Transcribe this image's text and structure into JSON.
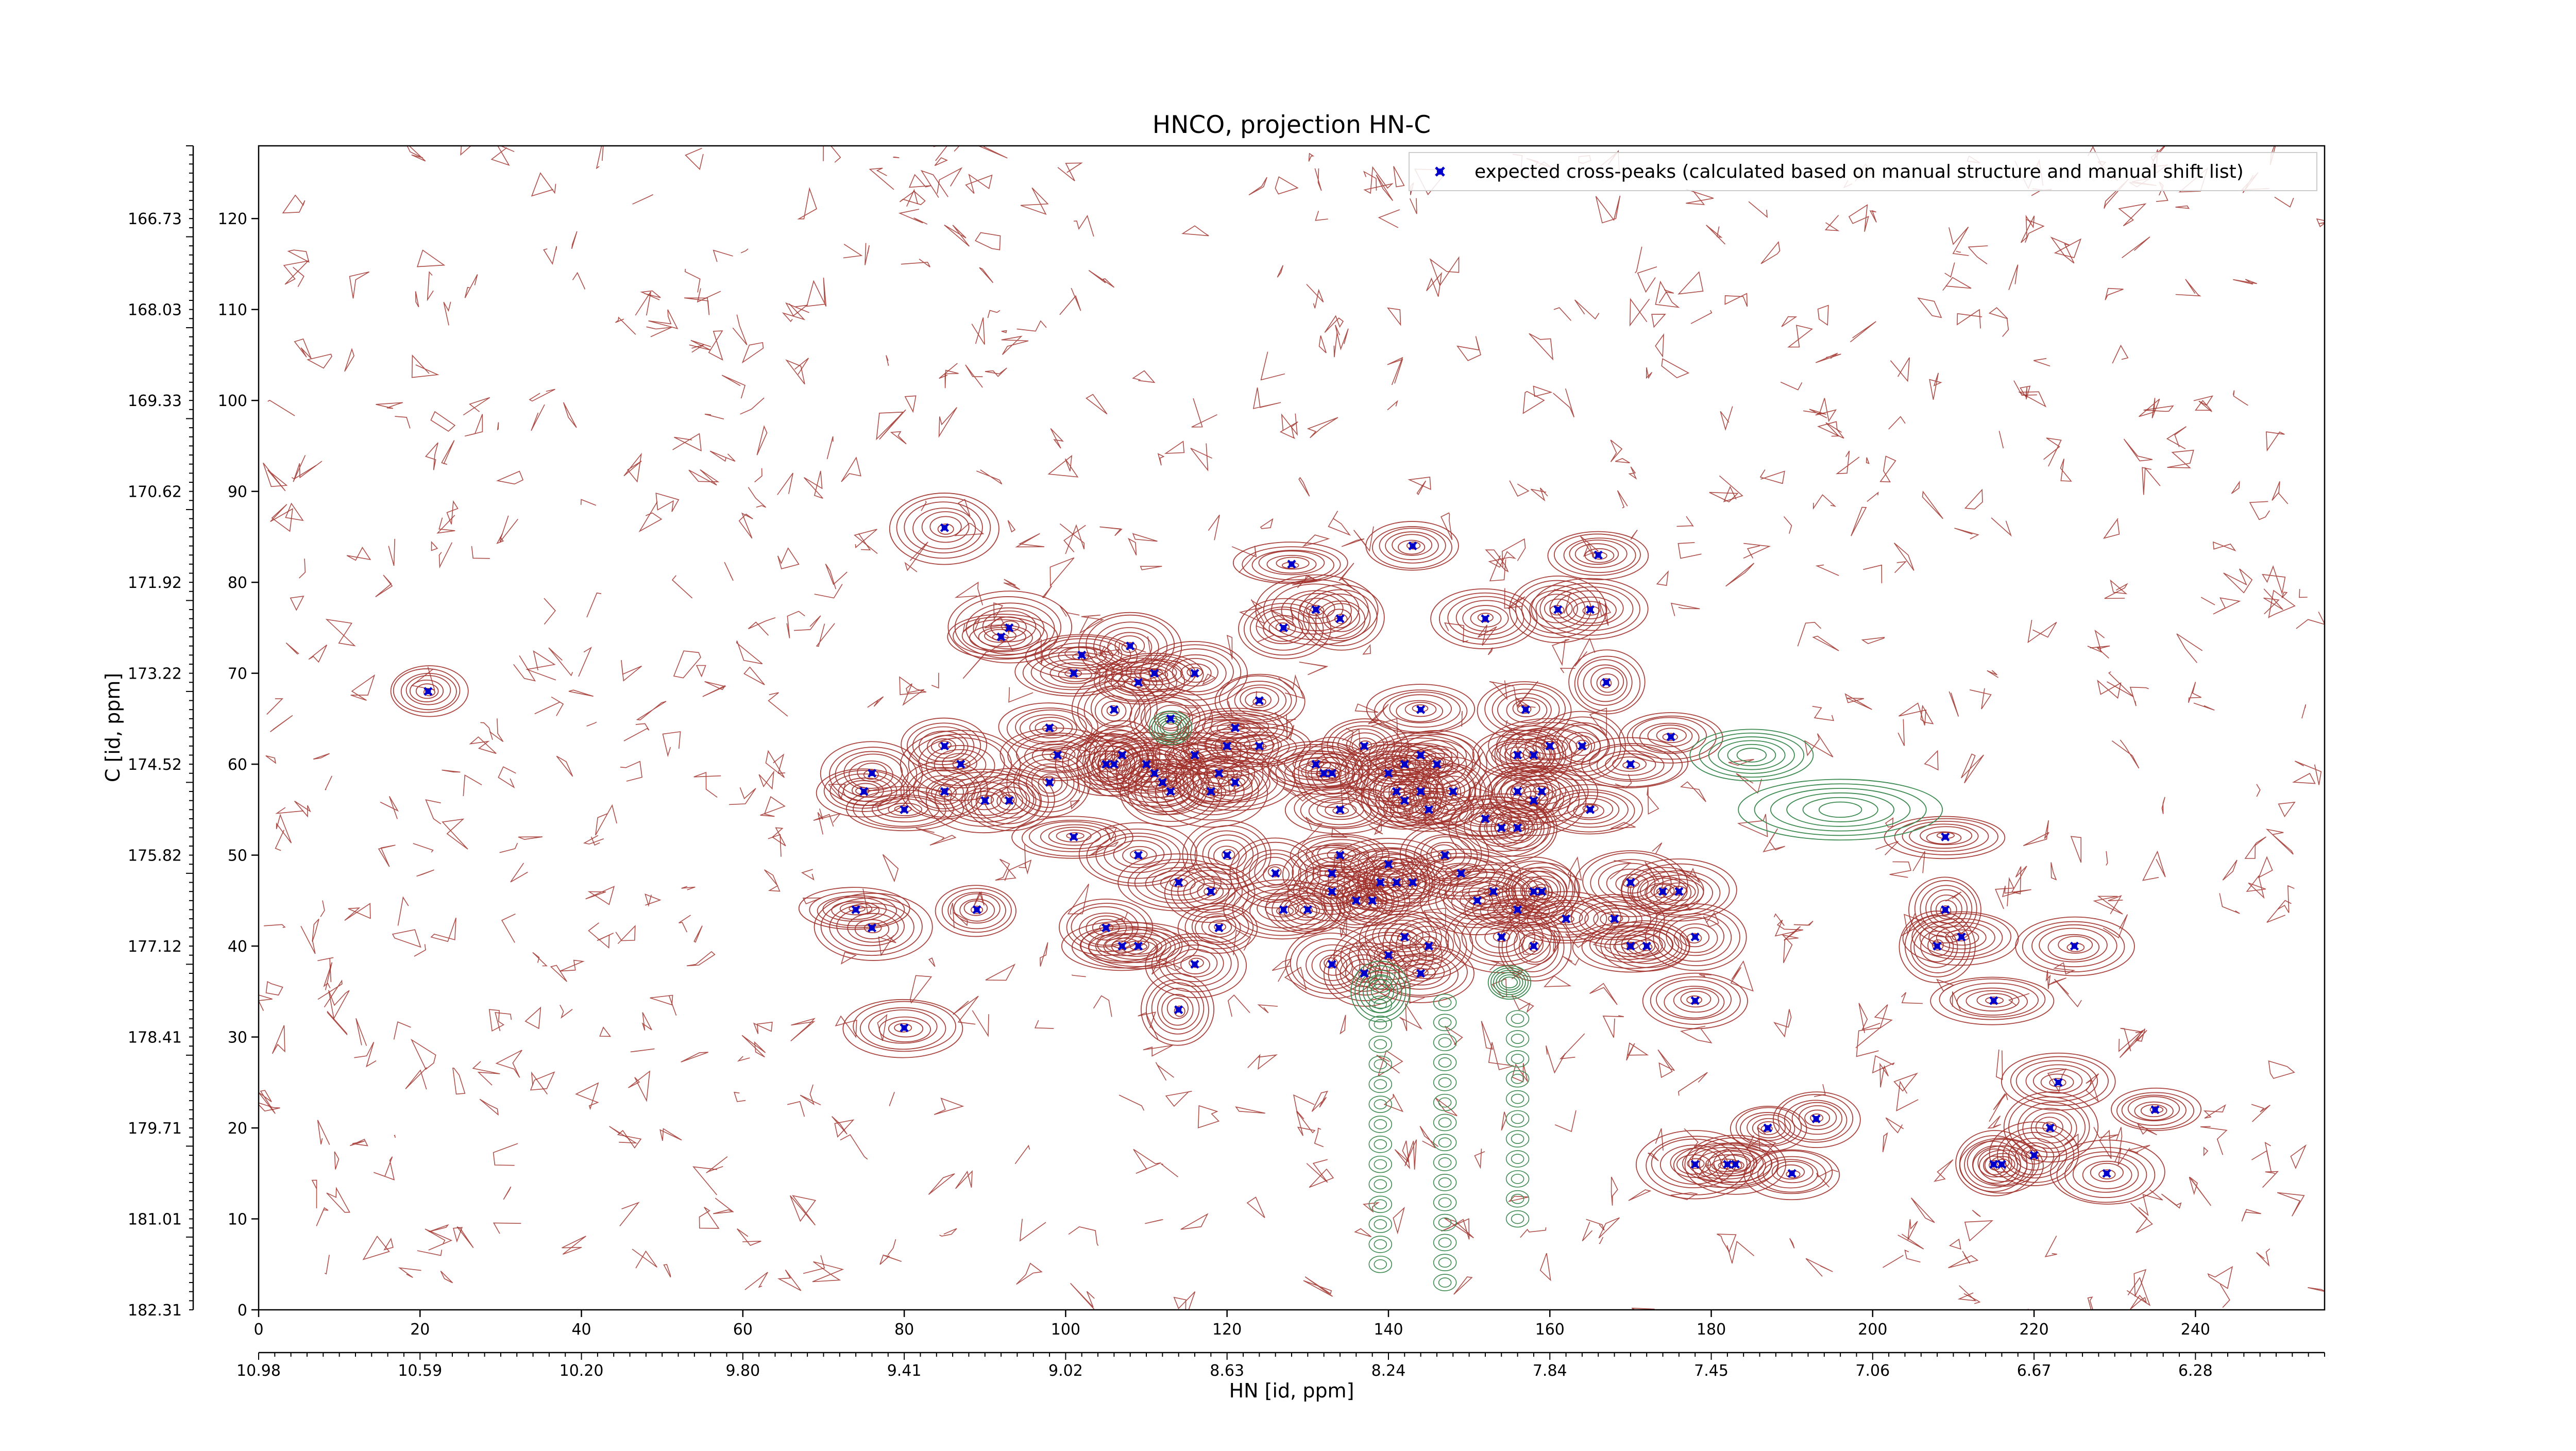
{
  "chart_data": {
    "type": "scatter",
    "title": "HNCO, projection HN-C",
    "xlabel": "HN [id, ppm]",
    "ylabel": "C [id, ppm]",
    "xlim": [
      0,
      256
    ],
    "ylim": [
      0,
      128
    ],
    "x_ticks": [
      0,
      20,
      40,
      60,
      80,
      100,
      120,
      140,
      160,
      180,
      200,
      220,
      240
    ],
    "y_ticks": [
      0,
      10,
      20,
      30,
      40,
      50,
      60,
      70,
      80,
      90,
      100,
      110,
      120
    ],
    "secondary_x_ticks": [
      "10.98",
      "10.59",
      "10.20",
      "9.80",
      "9.41",
      "9.02",
      "8.63",
      "8.24",
      "7.84",
      "7.45",
      "7.06",
      "6.67",
      "6.28"
    ],
    "secondary_y_ticks": [
      "182.31",
      "181.01",
      "179.71",
      "178.41",
      "177.12",
      "175.82",
      "174.52",
      "173.22",
      "171.92",
      "170.62",
      "169.33",
      "168.03",
      "166.73"
    ],
    "legend": {
      "position": "top-right",
      "label": "expected cross-peaks (calculated based on manual structure and manual shift list)"
    },
    "colors": {
      "positive_contour": "#a0302a",
      "negative_contour": "#3c8a50",
      "marker": "#0000cc"
    },
    "series": [
      {
        "name": "expected cross-peaks (calculated based on manual structure and manual shift list)",
        "marker": "x",
        "points": [
          [
            21,
            68
          ],
          [
            85,
            86
          ],
          [
            93,
            75
          ],
          [
            92,
            74
          ],
          [
            108,
            73
          ],
          [
            102,
            72
          ],
          [
            101,
            70
          ],
          [
            109,
            69
          ],
          [
            111,
            70
          ],
          [
            116,
            70
          ],
          [
            98,
            64
          ],
          [
            106,
            66
          ],
          [
            113,
            65
          ],
          [
            124,
            67
          ],
          [
            121,
            64
          ],
          [
            127,
            75
          ],
          [
            128,
            82
          ],
          [
            131,
            77
          ],
          [
            134,
            76
          ],
          [
            143,
            84
          ],
          [
            152,
            76
          ],
          [
            166,
            83
          ],
          [
            165,
            77
          ],
          [
            161,
            77
          ],
          [
            167,
            69
          ],
          [
            164,
            62
          ],
          [
            157,
            66
          ],
          [
            158,
            61
          ],
          [
            156,
            61
          ],
          [
            160,
            62
          ],
          [
            159,
            57
          ],
          [
            156,
            57
          ],
          [
            170,
            60
          ],
          [
            175,
            63
          ],
          [
            76,
            59
          ],
          [
            75,
            57
          ],
          [
            80,
            55
          ],
          [
            85,
            57
          ],
          [
            85,
            62
          ],
          [
            87,
            60
          ],
          [
            90,
            56
          ],
          [
            93,
            56
          ],
          [
            98,
            58
          ],
          [
            99,
            61
          ],
          [
            105,
            60
          ],
          [
            106,
            60
          ],
          [
            107,
            61
          ],
          [
            110,
            60
          ],
          [
            111,
            59
          ],
          [
            112,
            58
          ],
          [
            113,
            57
          ],
          [
            116,
            61
          ],
          [
            118,
            57
          ],
          [
            119,
            59
          ],
          [
            120,
            62
          ],
          [
            124,
            62
          ],
          [
            121,
            58
          ],
          [
            131,
            60
          ],
          [
            132,
            59
          ],
          [
            133,
            59
          ],
          [
            134,
            55
          ],
          [
            137,
            62
          ],
          [
            140,
            59
          ],
          [
            141,
            57
          ],
          [
            142,
            56
          ],
          [
            142,
            60
          ],
          [
            144,
            61
          ],
          [
            144,
            57
          ],
          [
            145,
            55
          ],
          [
            146,
            60
          ],
          [
            144,
            66
          ],
          [
            148,
            57
          ],
          [
            152,
            54
          ],
          [
            156,
            53
          ],
          [
            158,
            56
          ],
          [
            165,
            55
          ],
          [
            101,
            52
          ],
          [
            109,
            50
          ],
          [
            114,
            47
          ],
          [
            120,
            50
          ],
          [
            105,
            42
          ],
          [
            109,
            40
          ],
          [
            116,
            38
          ],
          [
            119,
            42
          ],
          [
            114,
            33
          ],
          [
            74,
            44
          ],
          [
            76,
            42
          ],
          [
            89,
            44
          ],
          [
            80,
            31
          ],
          [
            107,
            40
          ],
          [
            118,
            46
          ],
          [
            126,
            48
          ],
          [
            133,
            48
          ],
          [
            134,
            50
          ],
          [
            127,
            44
          ],
          [
            130,
            44
          ],
          [
            133,
            46
          ],
          [
            136,
            45
          ],
          [
            138,
            45
          ],
          [
            139,
            47
          ],
          [
            140,
            49
          ],
          [
            141,
            47
          ],
          [
            143,
            47
          ],
          [
            147,
            50
          ],
          [
            149,
            48
          ],
          [
            151,
            45
          ],
          [
            142,
            41
          ],
          [
            144,
            37
          ],
          [
            145,
            40
          ],
          [
            140,
            39
          ],
          [
            133,
            38
          ],
          [
            137,
            37
          ],
          [
            154,
            53
          ],
          [
            153,
            46
          ],
          [
            156,
            44
          ],
          [
            158,
            46
          ],
          [
            159,
            46
          ],
          [
            154,
            41
          ],
          [
            162,
            43
          ],
          [
            158,
            40
          ],
          [
            168,
            43
          ],
          [
            170,
            40
          ],
          [
            172,
            40
          ],
          [
            170,
            47
          ],
          [
            174,
            46
          ],
          [
            176,
            46
          ],
          [
            178,
            41
          ],
          [
            178,
            34
          ],
          [
            183,
            16
          ],
          [
            178,
            16
          ],
          [
            182,
            16
          ],
          [
            187,
            20
          ],
          [
            190,
            15
          ],
          [
            193,
            21
          ],
          [
            208,
            40
          ],
          [
            209,
            44
          ],
          [
            211,
            41
          ],
          [
            209,
            52
          ],
          [
            215,
            34
          ],
          [
            215,
            16
          ],
          [
            216,
            16
          ],
          [
            220,
            17
          ],
          [
            222,
            20
          ],
          [
            223,
            25
          ],
          [
            225,
            40
          ],
          [
            229,
            15
          ],
          [
            235,
            22
          ]
        ]
      }
    ]
  }
}
